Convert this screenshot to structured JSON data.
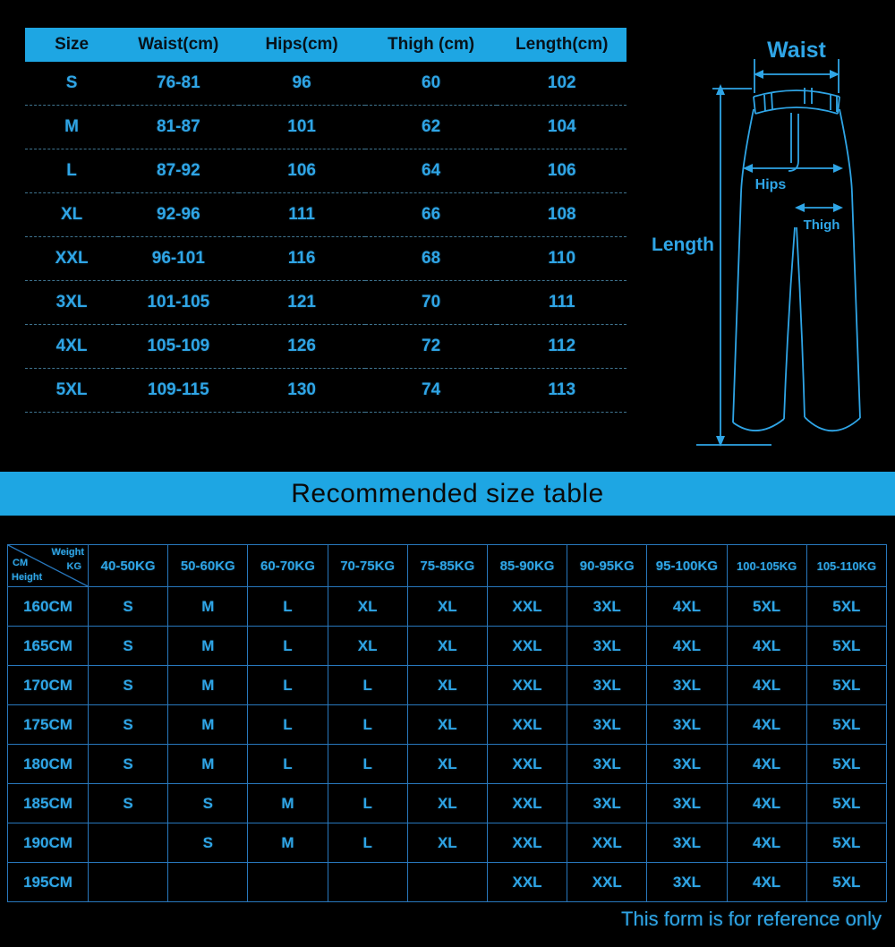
{
  "measurement_table": {
    "headers": [
      "Size",
      "Waist(cm)",
      "Hips(cm)",
      "Thigh (cm)",
      "Length(cm)"
    ],
    "rows": [
      [
        "S",
        "76-81",
        "96",
        "60",
        "102"
      ],
      [
        "M",
        "81-87",
        "101",
        "62",
        "104"
      ],
      [
        "L",
        "87-92",
        "106",
        "64",
        "106"
      ],
      [
        "XL",
        "92-96",
        "111",
        "66",
        "108"
      ],
      [
        "XXL",
        "96-101",
        "116",
        "68",
        "110"
      ],
      [
        "3XL",
        "101-105",
        "121",
        "70",
        "111"
      ],
      [
        "4XL",
        "105-109",
        "126",
        "72",
        "112"
      ],
      [
        "5XL",
        "109-115",
        "130",
        "74",
        "113"
      ]
    ]
  },
  "diagram": {
    "waist_label": "Waist",
    "hips_label": "Hips",
    "thigh_label": "Thigh",
    "length_label": "Length"
  },
  "banner": {
    "title": "Recommended size table"
  },
  "recommend_table": {
    "corner": {
      "weight": "Weight",
      "kg": "KG",
      "cm": "CM",
      "height": "Height"
    },
    "weight_headers": [
      "40-50KG",
      "50-60KG",
      "60-70KG",
      "70-75KG",
      "75-85KG",
      "85-90KG",
      "90-95KG",
      "95-100KG",
      "100-105KG",
      "105-110KG"
    ],
    "rows": [
      {
        "height": "160CM",
        "sizes": [
          "S",
          "M",
          "L",
          "XL",
          "XL",
          "XXL",
          "3XL",
          "4XL",
          "5XL",
          "5XL"
        ]
      },
      {
        "height": "165CM",
        "sizes": [
          "S",
          "M",
          "L",
          "XL",
          "XL",
          "XXL",
          "3XL",
          "4XL",
          "4XL",
          "5XL"
        ]
      },
      {
        "height": "170CM",
        "sizes": [
          "S",
          "M",
          "L",
          "L",
          "XL",
          "XXL",
          "3XL",
          "3XL",
          "4XL",
          "5XL"
        ]
      },
      {
        "height": "175CM",
        "sizes": [
          "S",
          "M",
          "L",
          "L",
          "XL",
          "XXL",
          "3XL",
          "3XL",
          "4XL",
          "5XL"
        ]
      },
      {
        "height": "180CM",
        "sizes": [
          "S",
          "M",
          "L",
          "L",
          "XL",
          "XXL",
          "3XL",
          "3XL",
          "4XL",
          "5XL"
        ]
      },
      {
        "height": "185CM",
        "sizes": [
          "S",
          "S",
          "M",
          "L",
          "XL",
          "XXL",
          "3XL",
          "3XL",
          "4XL",
          "5XL"
        ]
      },
      {
        "height": "190CM",
        "sizes": [
          "",
          "S",
          "M",
          "L",
          "XL",
          "XXL",
          "XXL",
          "3XL",
          "4XL",
          "5XL"
        ]
      },
      {
        "height": "195CM",
        "sizes": [
          "",
          "",
          "",
          "",
          "",
          "XXL",
          "XXL",
          "3XL",
          "4XL",
          "5XL"
        ]
      }
    ]
  },
  "footer": {
    "note": "This form is for reference only"
  },
  "colors": {
    "accent": "#1ea6e3",
    "text_blue": "#2fa5e6",
    "grid_line": "#2878bd",
    "separator_dashed": "#3f7490",
    "background": "#000000"
  }
}
